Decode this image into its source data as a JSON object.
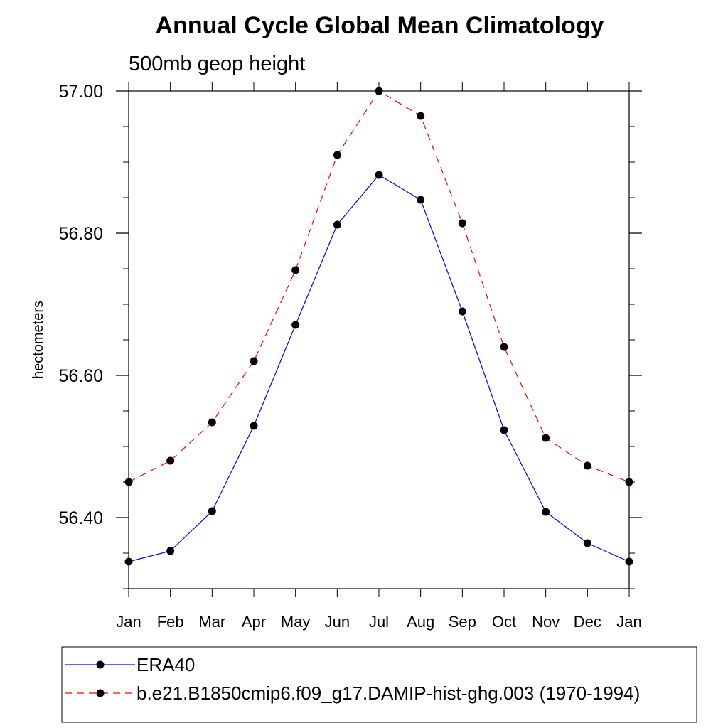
{
  "chart_data": {
    "type": "line",
    "title": "Annual Cycle Global Mean Climatology",
    "subtitle": "500mb geop height",
    "xlabel": "",
    "ylabel": "hectometers",
    "categories": [
      "Jan",
      "Feb",
      "Mar",
      "Apr",
      "May",
      "Jun",
      "Jul",
      "Aug",
      "Sep",
      "Oct",
      "Nov",
      "Dec",
      "Jan"
    ],
    "ylim": [
      56.3,
      57.0
    ],
    "yticks": [
      56.4,
      56.6,
      56.8,
      57.0
    ],
    "ytick_labels": [
      "56.40",
      "56.60",
      "56.80",
      "57.00"
    ],
    "yminor_step": 0.05,
    "grid": false,
    "legend_position": "bottom",
    "series": [
      {
        "name": "ERA40",
        "color": "#0000ff",
        "line_style": "solid",
        "marker": "filled-circle",
        "values": [
          56.338,
          56.353,
          56.409,
          56.529,
          56.671,
          56.812,
          56.882,
          56.847,
          56.69,
          56.523,
          56.408,
          56.364,
          56.338
        ]
      },
      {
        "name": "b.e21.B1850cmip6.f09_g17.DAMIP-hist-ghg.003 (1970-1994)",
        "color": "#ff0000",
        "line_style": "dashed",
        "marker": "filled-circle",
        "values": [
          56.45,
          56.48,
          56.534,
          56.62,
          56.748,
          56.91,
          57.0,
          56.965,
          56.814,
          56.64,
          56.512,
          56.473,
          56.45
        ]
      }
    ]
  }
}
